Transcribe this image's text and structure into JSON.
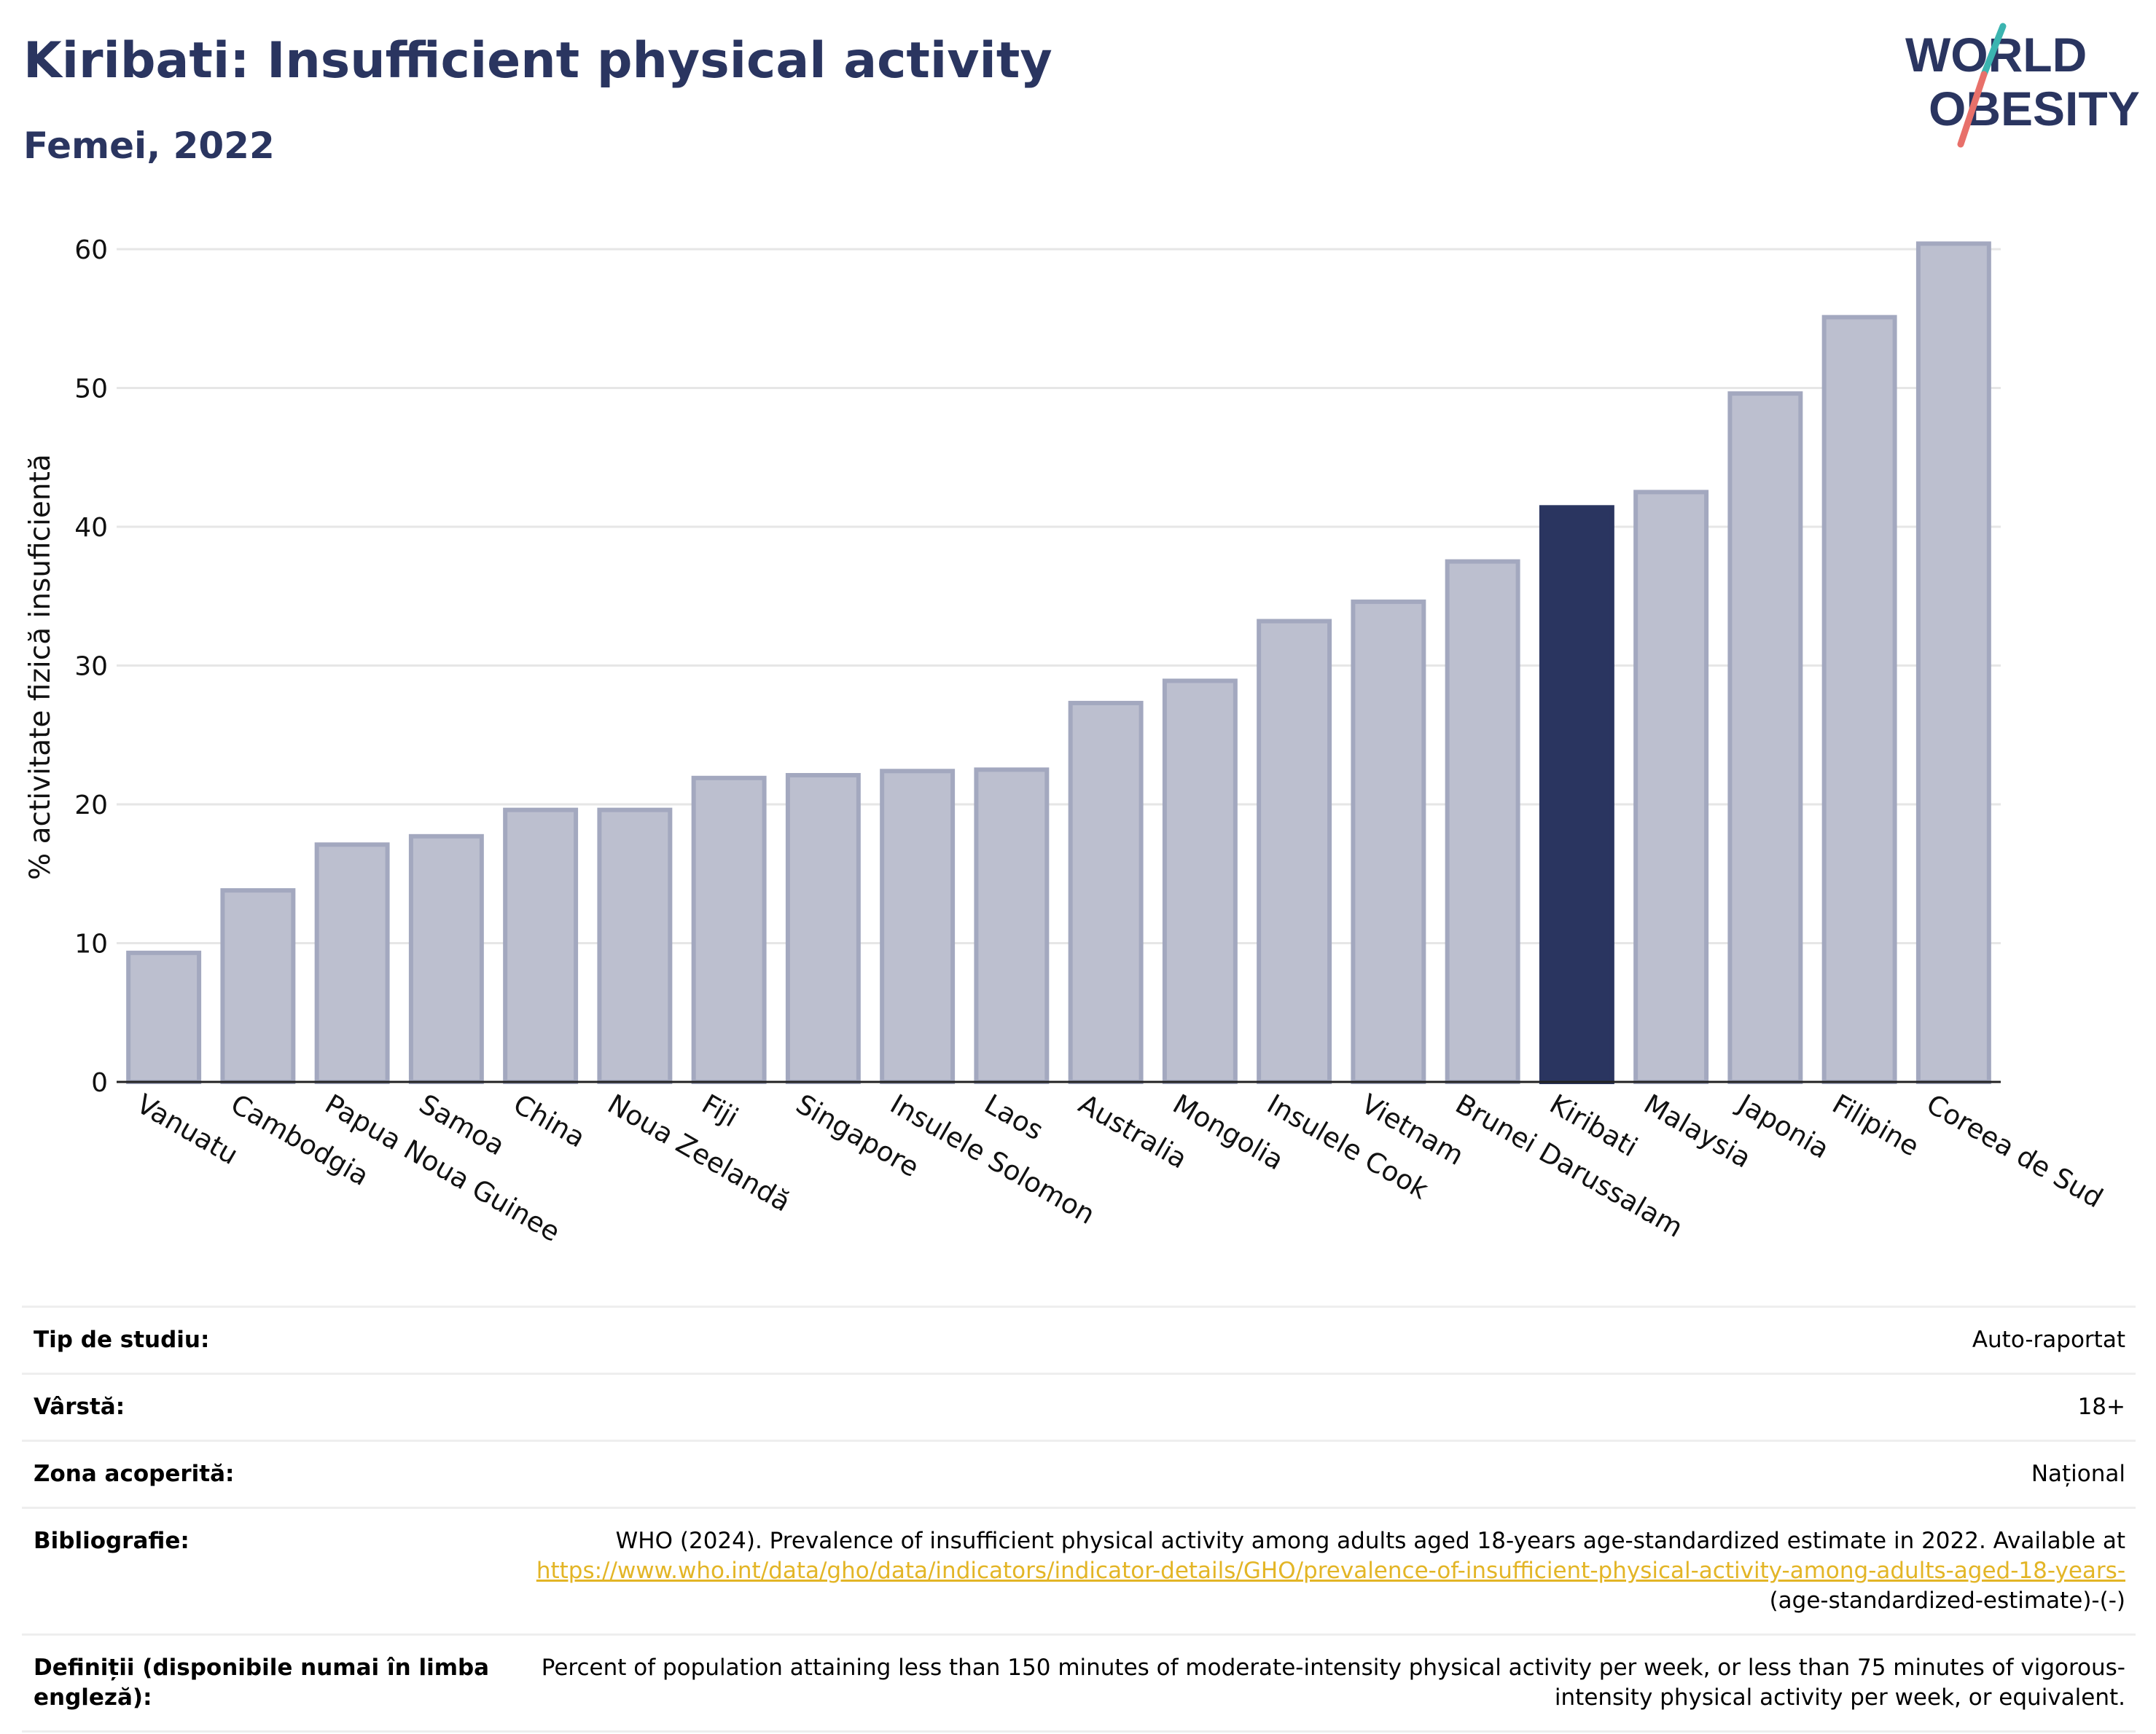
{
  "header": {
    "title": "Kiribati: Insufficient physical activity",
    "subtitle": "Femei, 2022"
  },
  "logo": {
    "line1": "WORLD",
    "line2": "OBESITY",
    "colors": {
      "text": "#2a3560",
      "teal": "#3bb4b0",
      "coral": "#e8706a"
    }
  },
  "chart_data": {
    "type": "bar",
    "ylabel": "% activitate fizică insuficientă",
    "ylim": [
      0,
      63
    ],
    "yticks": [
      0,
      10,
      20,
      30,
      40,
      50,
      60
    ],
    "grid": true,
    "highlight": "Kiribati",
    "colors": {
      "bar": "#bcbfcf",
      "bar_border": "#a3a8bf",
      "highlight": "#2a3560"
    },
    "categories": [
      "Vanuatu",
      "Cambodgia",
      "Papua Noua Guinee",
      "Samoa",
      "China",
      "Noua Zeelandă",
      "Fiji",
      "Singapore",
      "Insulele Solomon",
      "Laos",
      "Australia",
      "Mongolia",
      "Insulele Cook",
      "Vietnam",
      "Brunei Darussalam",
      "Kiribati",
      "Malaysia",
      "Japonia",
      "Filipine",
      "Coreea de Sud"
    ],
    "values": [
      9.3,
      13.8,
      17.1,
      17.7,
      19.6,
      19.6,
      21.9,
      22.1,
      22.4,
      22.5,
      27.3,
      28.9,
      33.2,
      34.6,
      37.5,
      41.4,
      42.5,
      49.6,
      55.1,
      60.4
    ]
  },
  "info": {
    "rows": [
      {
        "key": "Tip de studiu:",
        "value": "Auto-raportat"
      },
      {
        "key": "Vârstă:",
        "value": "18+"
      },
      {
        "key": "Zona acoperită:",
        "value": "Național"
      }
    ],
    "bibliography": {
      "key": "Bibliografie:",
      "text": "WHO (2024). Prevalence of insufficient physical activity among adults aged 18-years age-standardized estimate in 2022. Available at ",
      "link": "https://www.who.int/data/gho/data/indicators/indicator-details/GHO/prevalence-of-insufficient-physical-activity-among-adults-aged-18-years-",
      "suffix": "(age-standardized-estimate)-(-)"
    },
    "definitions": {
      "key": "Definiții (disponibile numai în limba engleză):",
      "value": "Percent of population attaining less than 150 minutes of moderate-intensity physical activity per week, or less than 75 minutes of vigorous-intensity physical activity per week, or equivalent."
    }
  }
}
